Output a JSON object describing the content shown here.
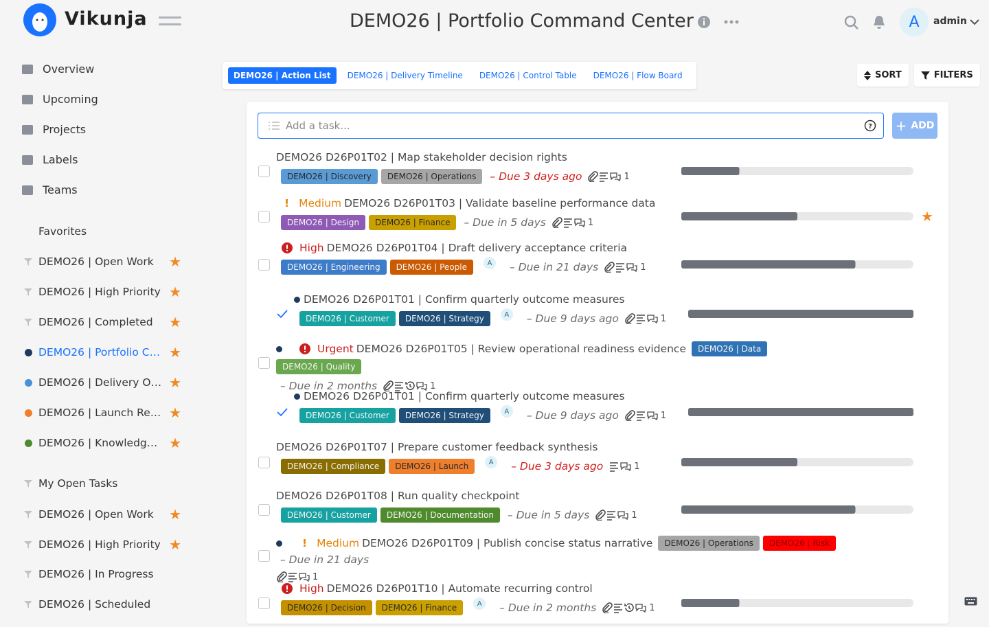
{
  "header": {
    "logo": "Vikunja",
    "title": "DEMO26 | Portfolio Command Center",
    "user_initial": "A",
    "user": "admin"
  },
  "nav": [
    "Overview",
    "Upcoming",
    "Projects",
    "Labels",
    "Teams"
  ],
  "favorites_heading": "Favorites",
  "favorites": [
    {
      "name": "DEMO26 | Open Work",
      "icon": "filter",
      "starred": true
    },
    {
      "name": "DEMO26 | High Priority",
      "icon": "filter",
      "starred": true
    },
    {
      "name": "DEMO26 | Completed",
      "icon": "filter",
      "starred": true
    },
    {
      "name": "DEMO26 | Portfolio C…",
      "icon": "dot",
      "color": "#1f3a5f",
      "starred": true,
      "active": true
    },
    {
      "name": "DEMO26 | Delivery O…",
      "icon": "dot",
      "color": "#4a90d9",
      "starred": true
    },
    {
      "name": "DEMO26 | Launch Re…",
      "icon": "dot",
      "color": "#ee7f2d",
      "starred": true
    },
    {
      "name": "DEMO26 | Knowledg…",
      "icon": "dot",
      "color": "#4f8a2c",
      "starred": true
    }
  ],
  "filters": [
    {
      "name": "My Open Tasks",
      "icon": "filter",
      "starred": false
    },
    {
      "name": "DEMO26 | Open Work",
      "icon": "filter",
      "starred": true
    },
    {
      "name": "DEMO26 | High Priority",
      "icon": "filter",
      "starred": true
    },
    {
      "name": "DEMO26 | In Progress",
      "icon": "filter",
      "starred": false
    },
    {
      "name": "DEMO26 | Scheduled",
      "icon": "filter",
      "starred": false
    }
  ],
  "views": [
    {
      "name": "DEMO26 | Action List",
      "active": true
    },
    {
      "name": "DEMO26 | Delivery Timeline",
      "active": false
    },
    {
      "name": "DEMO26 | Control Table",
      "active": false
    },
    {
      "name": "DEMO26 | Flow Board",
      "active": false
    }
  ],
  "sort": "SORT",
  "filter_button": "FILTERS",
  "add_placeholder": "Add a task...",
  "add_button": "ADD",
  "tasks": [
    {
      "title": "DEMO26 D26P01T02 | Map stakeholder decision rights",
      "labels": [
        {
          "text": "DEMO26 | Discovery",
          "color": "#5b9bd5"
        },
        {
          "text": "DEMO26 | Operations",
          "color": "#a6a6a6"
        }
      ],
      "due": "– Due 3 days ago",
      "overdue": true,
      "attachment": true,
      "description": true,
      "repeats": false,
      "comments": 1,
      "progress": 25
    },
    {
      "priority": {
        "text": "Medium",
        "color": "#e8840c",
        "icon": "bang"
      },
      "title": "DEMO26 D26P01T03 | Validate baseline performance data",
      "labels": [
        {
          "text": "DEMO26 | Design",
          "color": "#8e5ab5"
        },
        {
          "text": "DEMO26 | Finance",
          "color": "#c9a000"
        }
      ],
      "due": "– Due in 5 days",
      "overdue": false,
      "attachment": true,
      "description": true,
      "repeats": false,
      "comments": 1,
      "progress": 50,
      "starred": true
    },
    {
      "priority": {
        "text": "High",
        "color": "#cc1f1f",
        "icon": "circle"
      },
      "title": "DEMO26 D26P01T04 | Draft delivery acceptance criteria",
      "labels": [
        {
          "text": "DEMO26 | Engineering",
          "color": "#3d7cc9"
        },
        {
          "text": "DEMO26 | People",
          "color": "#cc5a00"
        }
      ],
      "assignee": "A",
      "due": "– Due in 21 days",
      "overdue": false,
      "attachment": true,
      "description": true,
      "repeats": false,
      "comments": 1,
      "progress": 75
    },
    {
      "subtask": true,
      "done": true,
      "dot": "#1f3a5f",
      "title": "DEMO26 D26P01T01 | Confirm quarterly outcome measures",
      "labels": [
        {
          "text": "DEMO26 | Customer",
          "color": "#17a2a2"
        },
        {
          "text": "DEMO26 | Strategy",
          "color": "#1f4e79"
        }
      ],
      "assignee": "A",
      "due": "– Due 9 days ago",
      "overdue": false,
      "attachment": true,
      "description": true,
      "repeats": false,
      "comments": 1,
      "progress": 100
    },
    {
      "dot": "#1f3a5f",
      "priority": {
        "text": "Urgent",
        "color": "#cc1f1f",
        "icon": "circle"
      },
      "title": "DEMO26 D26P01T05 | Review operational readiness evidence",
      "labels": [
        {
          "text": "DEMO26 | Data",
          "color": "#2f73b5"
        },
        {
          "text": "DEMO26 | Quality",
          "color": "#6aa84f"
        }
      ],
      "due": "– Due in 2 months",
      "overdue": false,
      "attachment": true,
      "description": true,
      "repeats": true,
      "comments": 1
    },
    {
      "subtask": true,
      "done": true,
      "dot": "#1f3a5f",
      "title": "DEMO26 D26P01T01 | Confirm quarterly outcome measures",
      "labels": [
        {
          "text": "DEMO26 | Customer",
          "color": "#17a2a2"
        },
        {
          "text": "DEMO26 | Strategy",
          "color": "#1f4e79"
        }
      ],
      "assignee": "A",
      "due": "– Due 9 days ago",
      "overdue": false,
      "attachment": true,
      "description": true,
      "repeats": false,
      "comments": 1,
      "progress": 100
    },
    {
      "title": "DEMO26 D26P01T07 | Prepare customer feedback synthesis",
      "labels": [
        {
          "text": "DEMO26 | Compliance",
          "color": "#8a6d00"
        },
        {
          "text": "DEMO26 | Launch",
          "color": "#ee7f2d"
        }
      ],
      "assignee": "A",
      "due": "– Due 3 days ago",
      "overdue": true,
      "attachment": false,
      "description": true,
      "repeats": false,
      "comments": 1,
      "progress": 50
    },
    {
      "title": "DEMO26 D26P01T08 | Run quality checkpoint",
      "labels": [
        {
          "text": "DEMO26 | Customer",
          "color": "#17a2a2"
        },
        {
          "text": "DEMO26 | Documentation",
          "color": "#4f8a2c"
        }
      ],
      "due": "– Due in 5 days",
      "overdue": false,
      "attachment": true,
      "description": true,
      "repeats": false,
      "comments": 1,
      "progress": 75
    },
    {
      "dot": "#1f3a5f",
      "priority": {
        "text": "Medium",
        "color": "#e8840c",
        "icon": "bang"
      },
      "title": "DEMO26 D26P01T09 | Publish concise status narrative",
      "labels": [
        {
          "text": "DEMO26 | Operations",
          "color": "#a6a6a6"
        },
        {
          "text": "DEMO26 | Risk",
          "color": "#ff0000"
        }
      ],
      "due": "– Due in 21 days",
      "overdue": false,
      "attachment": true,
      "description": true,
      "repeats": false,
      "comments": 1
    },
    {
      "priority": {
        "text": "High",
        "color": "#cc1f1f",
        "icon": "circle"
      },
      "title": "DEMO26 D26P01T10 | Automate recurring control",
      "labels": [
        {
          "text": "DEMO26 | Decision",
          "color": "#c49000"
        },
        {
          "text": "DEMO26 | Finance",
          "color": "#c9a000"
        }
      ],
      "assignee": "A",
      "due": "– Due in 2 months",
      "overdue": false,
      "attachment": true,
      "description": true,
      "repeats": true,
      "comments": 1,
      "progress": 25
    }
  ]
}
